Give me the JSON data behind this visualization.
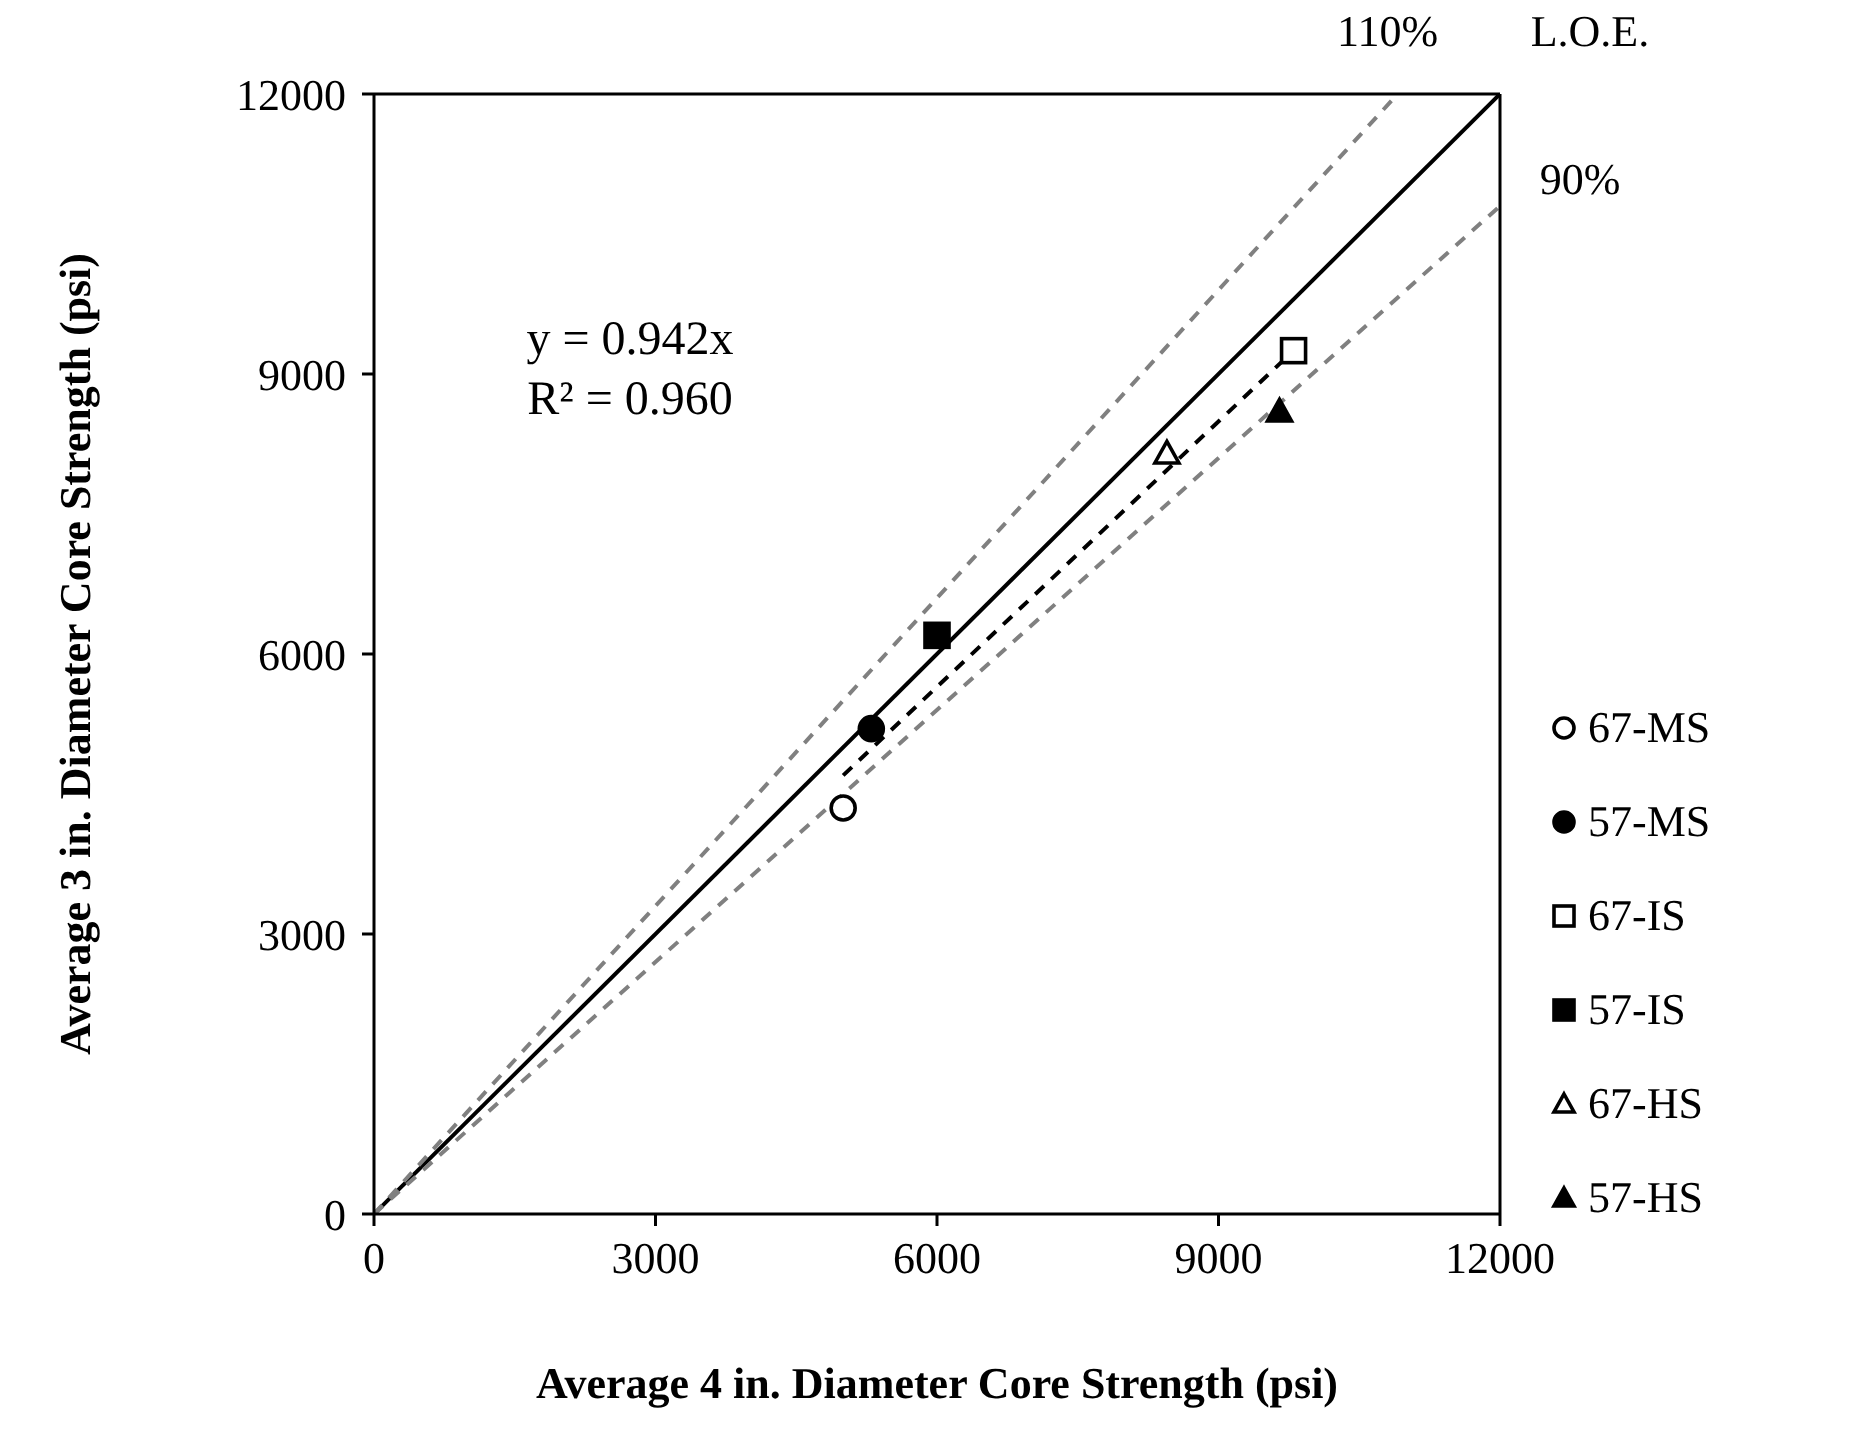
{
  "chart_data": {
    "type": "scatter",
    "xlabel": "Average 4 in. Diameter Core Strength (psi)",
    "ylabel": "Average 3 in. Diameter Core Strength (psi)",
    "xlim": [
      0,
      12000
    ],
    "xticks": [
      0,
      3000,
      6000,
      9000,
      12000
    ],
    "ylim": [
      0,
      12000
    ],
    "yticks": [
      0,
      3000,
      6000,
      9000,
      12000
    ],
    "legend": "right",
    "annotations": [
      "y = 0.942x",
      "R² = 0.960"
    ],
    "series": [
      {
        "name": "67-MS",
        "color": "#ffffff",
        "marker": "circle",
        "x": [
          5000
        ],
        "values": [
          4350
        ]
      },
      {
        "name": "57-MS",
        "color": "#000000",
        "marker": "circle",
        "x": [
          5300
        ],
        "values": [
          5200
        ]
      },
      {
        "name": "67-IS",
        "color": "#ffffff",
        "marker": "square",
        "x": [
          9800
        ],
        "values": [
          9250
        ]
      },
      {
        "name": "57-IS",
        "color": "#000000",
        "marker": "square",
        "x": [
          6000
        ],
        "values": [
          6200
        ]
      },
      {
        "name": "67-HS",
        "color": "#ffffff",
        "marker": "triangle",
        "x": [
          8450
        ],
        "values": [
          8150
        ]
      },
      {
        "name": "57-HS",
        "color": "#000000",
        "marker": "triangle",
        "x": [
          9650
        ],
        "values": [
          8600
        ]
      },
      {
        "type": "line",
        "color": "#000000",
        "line_style": "dashed",
        "x": [
          5000,
          9800
        ],
        "values": [
          4700,
          9250
        ]
      },
      {
        "type": "line",
        "name": "L.O.E.",
        "color": "#000000",
        "line_style": "solid",
        "x": [
          0,
          12000
        ],
        "values": [
          0,
          12000
        ]
      },
      {
        "type": "line",
        "name": "110%",
        "color": "#808080",
        "line_style": "dashed",
        "x": [
          0,
          10909
        ],
        "values": [
          0,
          12000
        ]
      },
      {
        "type": "line",
        "name": "90%",
        "color": "#808080",
        "line_style": "dashed",
        "x": [
          0,
          12000
        ],
        "values": [
          0,
          10800
        ]
      }
    ]
  }
}
